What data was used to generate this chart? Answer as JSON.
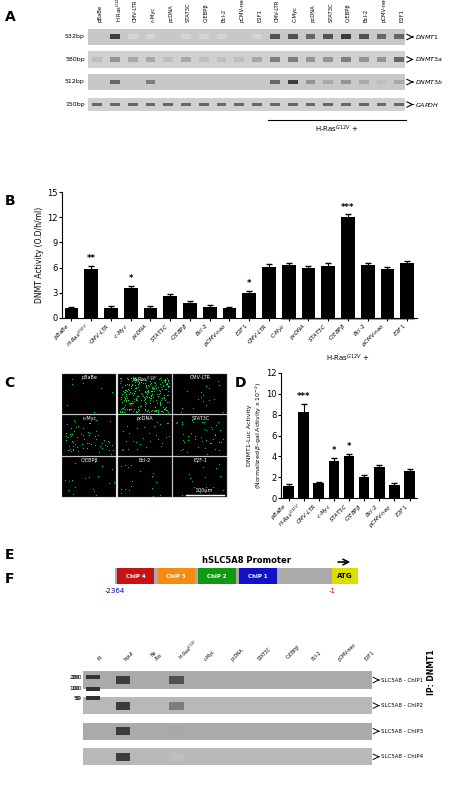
{
  "panel_B_values": [
    1.1,
    5.8,
    1.2,
    3.5,
    1.2,
    2.6,
    1.8,
    1.3,
    1.1,
    3.0,
    6.1,
    6.3,
    5.9,
    6.2,
    12.0,
    6.3,
    5.8,
    6.5
  ],
  "panel_B_errors": [
    0.15,
    0.4,
    0.15,
    0.3,
    0.15,
    0.25,
    0.2,
    0.15,
    0.15,
    0.2,
    0.3,
    0.3,
    0.3,
    0.3,
    0.4,
    0.3,
    0.3,
    0.3
  ],
  "panel_B_stars": [
    "",
    "**",
    "",
    "*",
    "",
    "",
    "",
    "",
    "",
    "*",
    "",
    "",
    "",
    "",
    "***",
    "",
    "",
    ""
  ],
  "panel_D_values": [
    1.2,
    8.3,
    1.4,
    3.6,
    4.0,
    2.0,
    3.0,
    1.3,
    2.6
  ],
  "panel_D_errors": [
    0.15,
    0.7,
    0.15,
    0.25,
    0.25,
    0.2,
    0.2,
    0.15,
    0.2
  ],
  "panel_D_stars": [
    "",
    "***",
    "",
    "*",
    "*",
    "",
    "",
    "",
    ""
  ],
  "dnmt1_intensity": [
    0.05,
    0.9,
    0.2,
    0.2,
    0.1,
    0.2,
    0.2,
    0.2,
    0.1,
    0.2,
    0.8,
    0.8,
    0.7,
    0.8,
    0.9,
    0.8,
    0.7,
    0.7
  ],
  "dnmt3a_intensity": [
    0.3,
    0.5,
    0.4,
    0.4,
    0.3,
    0.4,
    0.3,
    0.3,
    0.3,
    0.4,
    0.6,
    0.6,
    0.5,
    0.5,
    0.6,
    0.5,
    0.5,
    0.7
  ],
  "dnmt3b_intensity": [
    0.05,
    0.7,
    0.1,
    0.6,
    0.1,
    0.1,
    0.1,
    0.1,
    0.05,
    0.1,
    0.7,
    0.9,
    0.5,
    0.4,
    0.5,
    0.4,
    0.3,
    0.4
  ],
  "gapdh_intensity": [
    0.7,
    0.7,
    0.7,
    0.7,
    0.7,
    0.7,
    0.7,
    0.7,
    0.7,
    0.7,
    0.7,
    0.7,
    0.7,
    0.7,
    0.7,
    0.7,
    0.7,
    0.7
  ],
  "chip_band_patterns": [
    [
      0.9,
      0.05,
      0.8,
      0.05,
      0.05,
      0.05,
      0.05,
      0.05,
      0.05,
      0.05
    ],
    [
      0.9,
      0.05,
      0.6,
      0.05,
      0.05,
      0.05,
      0.05,
      0.05,
      0.05,
      0.05
    ],
    [
      0.9,
      0.05,
      0.4,
      0.05,
      0.05,
      0.05,
      0.05,
      0.05,
      0.05,
      0.05
    ],
    [
      0.9,
      0.05,
      0.3,
      0.05,
      0.05,
      0.05,
      0.05,
      0.05,
      0.05,
      0.05
    ]
  ],
  "figure_bg": "#ffffff"
}
